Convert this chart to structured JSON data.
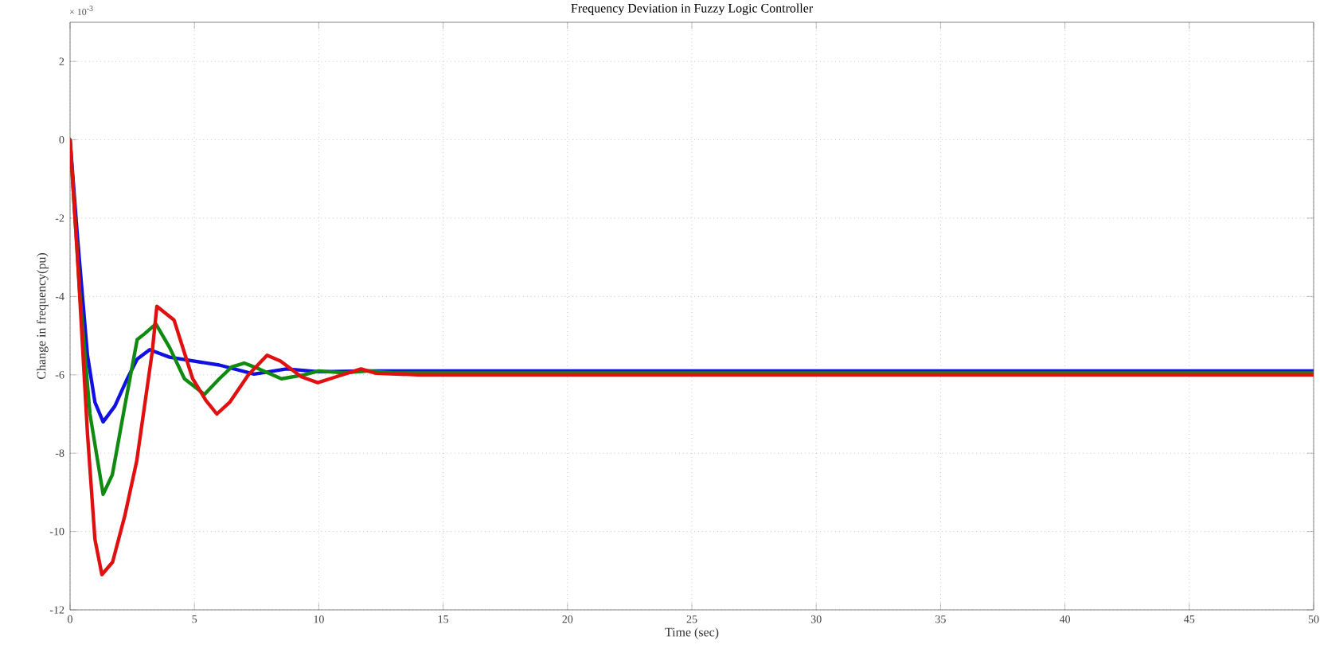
{
  "chart_data": {
    "type": "line",
    "title": "Frequency Deviation in Fuzzy Logic Controller",
    "xlabel": "Time (sec)",
    "ylabel": "Change in frequency(pu)",
    "annotations": [
      "× 10$^{-3}$"
    ],
    "xlim": [
      0,
      50
    ],
    "ylim": [
      -12,
      3
    ],
    "xticks": [
      0,
      5,
      10,
      15,
      20,
      25,
      30,
      35,
      40,
      45,
      50
    ],
    "yticks": [
      -12,
      -10,
      -8,
      -6,
      -4,
      -2,
      0,
      2
    ],
    "grid": true,
    "line_style": "solid",
    "marker": "none",
    "series": [
      {
        "color": "#1010e0",
        "x": [
          0,
          0.3,
          0.7,
          1.0,
          1.33,
          1.8,
          2.3,
          2.7,
          3.2,
          4,
          5,
          6,
          7.4,
          8.7,
          10,
          12,
          50
        ],
        "values": [
          0,
          -2.5,
          -5.5,
          -6.7,
          -7.2,
          -6.8,
          -6.1,
          -5.6,
          -5.36,
          -5.55,
          -5.65,
          -5.75,
          -5.98,
          -5.85,
          -5.92,
          -5.9,
          -5.9
        ]
      },
      {
        "color": "#108a10",
        "x": [
          0,
          0.4,
          0.8,
          1.33,
          1.7,
          2.2,
          2.7,
          3.0,
          3.45,
          4,
          4.6,
          5.4,
          6,
          6.5,
          7,
          7.6,
          8.5,
          9.4,
          10,
          11,
          12,
          13,
          50
        ],
        "values": [
          0,
          -4,
          -7,
          -9.05,
          -8.55,
          -6.8,
          -5.1,
          -4.95,
          -4.7,
          -5.3,
          -6.1,
          -6.5,
          -6.1,
          -5.8,
          -5.7,
          -5.85,
          -6.1,
          -6.0,
          -5.9,
          -5.95,
          -5.9,
          -5.95,
          -5.95
        ]
      },
      {
        "color": "#e01010",
        "x": [
          0,
          0.3,
          0.7,
          1.0,
          1.28,
          1.71,
          2.2,
          2.68,
          3.3,
          3.49,
          4.18,
          4.93,
          5.46,
          5.9,
          6.42,
          7.17,
          7.92,
          8.46,
          9.3,
          9.96,
          10.7,
          11.7,
          12.3,
          14,
          50
        ],
        "values": [
          0,
          -3,
          -7.5,
          -10.2,
          -11.1,
          -10.78,
          -9.6,
          -8.2,
          -5.43,
          -4.25,
          -4.6,
          -6.1,
          -6.65,
          -7.0,
          -6.7,
          -6.0,
          -5.5,
          -5.65,
          -6.05,
          -6.2,
          -6.05,
          -5.85,
          -5.96,
          -6.0,
          -6.0
        ]
      }
    ]
  }
}
